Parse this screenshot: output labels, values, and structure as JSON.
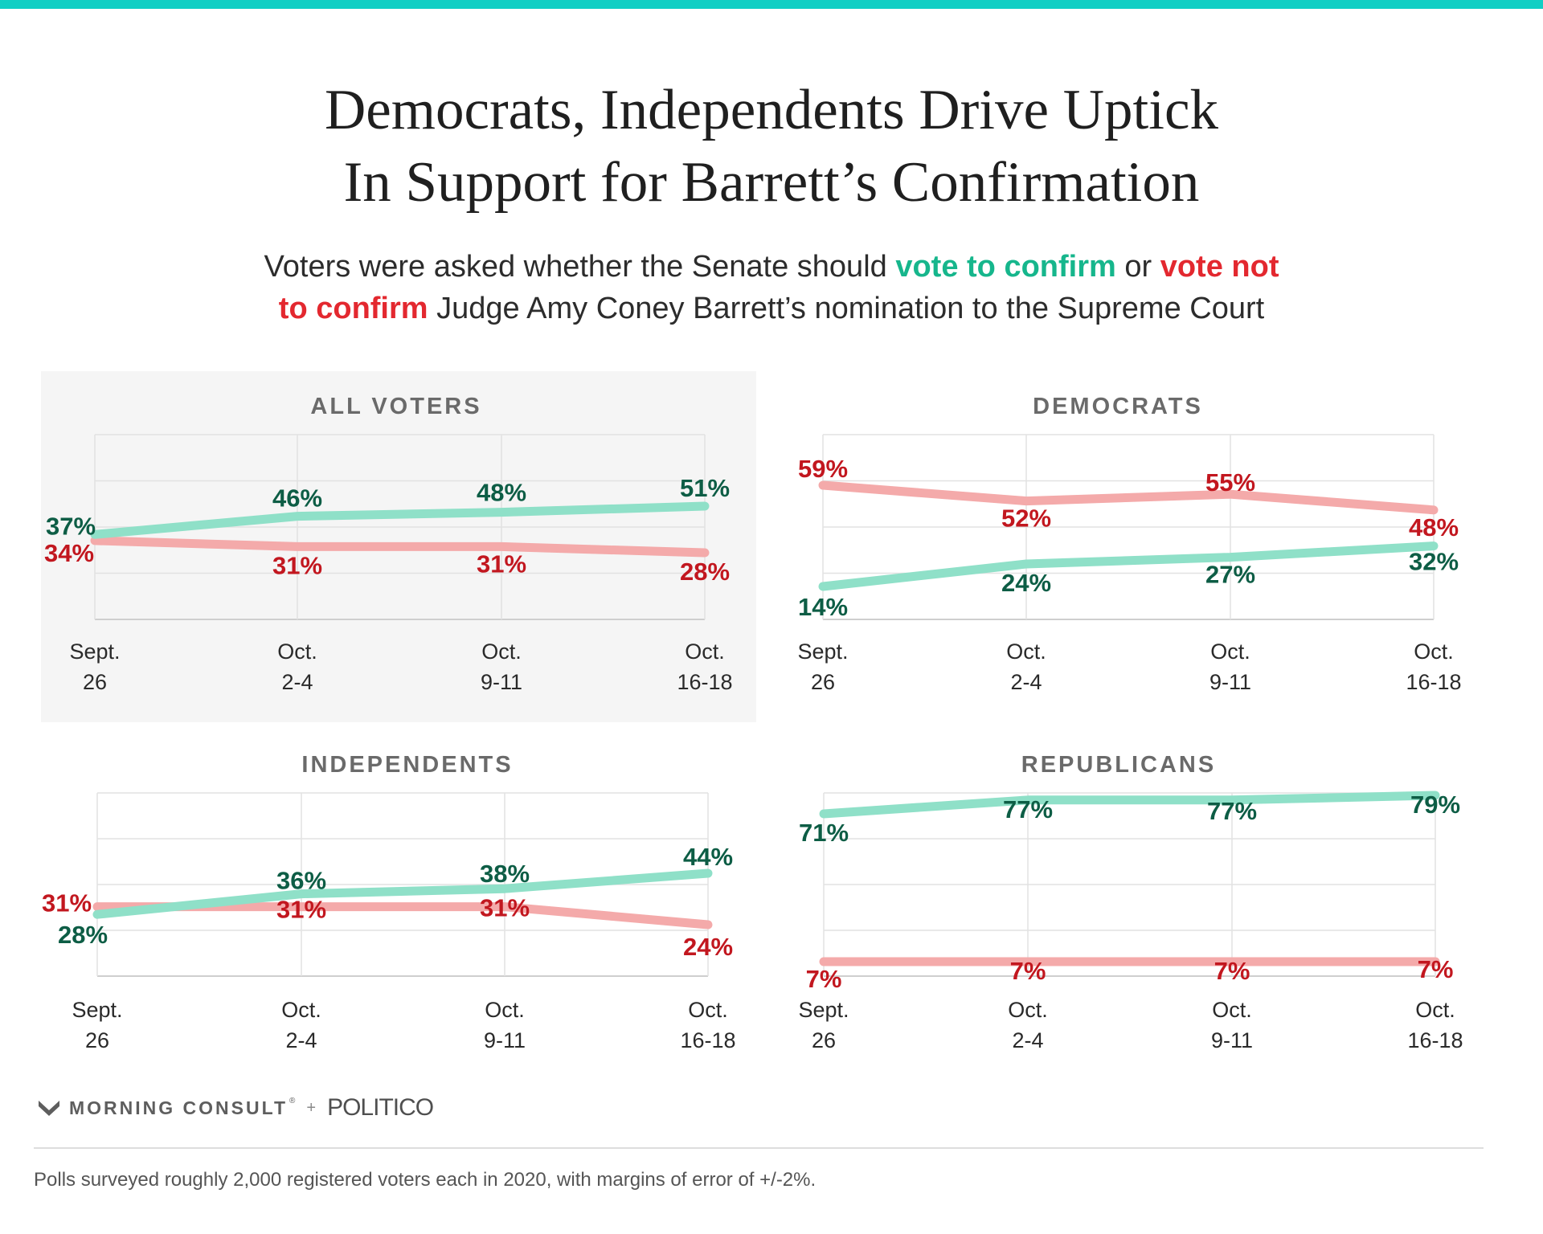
{
  "title_lines": [
    "Democrats, Independents Drive Uptick",
    "In Support for Barrett’s Confirmation"
  ],
  "subtitle": {
    "part1": "Voters were asked whether the Senate should ",
    "green": "vote to confirm",
    "part2": " or ",
    "red_line1": "vote not",
    "red_line2": "to confirm",
    "part3": " Judge Amy Coney Barrett’s nomination to the Supreme Court"
  },
  "colors": {
    "confirm_line": "#8fe0c8",
    "confirm_label": "#0d5d45",
    "not_confirm_line": "#f4aaaa",
    "not_confirm_label": "#c2171f",
    "panel_highlight": "#f5f5f5",
    "grid": "#e2e2e2"
  },
  "chart_data": [
    {
      "type": "line",
      "title": "ALL VOTERS",
      "highlighted": true,
      "x": [
        "Sept.\n26",
        "Oct.\n2-4",
        "Oct.\n9-11",
        "Oct.\n16-18"
      ],
      "series": [
        {
          "key": "confirm",
          "values": [
            37,
            46,
            48,
            51
          ]
        },
        {
          "key": "not_confirm",
          "values": [
            34,
            31,
            31,
            28
          ]
        }
      ],
      "grid": true
    },
    {
      "type": "line",
      "title": "DEMOCRATS",
      "highlighted": false,
      "x": [
        "Sept.\n26",
        "Oct.\n2-4",
        "Oct.\n9-11",
        "Oct.\n16-18"
      ],
      "series": [
        {
          "key": "confirm",
          "values": [
            14,
            24,
            27,
            32
          ]
        },
        {
          "key": "not_confirm",
          "values": [
            59,
            52,
            55,
            48
          ]
        }
      ],
      "grid": true
    },
    {
      "type": "line",
      "title": "INDEPENDENTS",
      "highlighted": false,
      "x": [
        "Sept.\n26",
        "Oct.\n2-4",
        "Oct.\n9-11",
        "Oct.\n16-18"
      ],
      "series": [
        {
          "key": "confirm",
          "values": [
            28,
            36,
            38,
            44
          ]
        },
        {
          "key": "not_confirm",
          "values": [
            31,
            31,
            31,
            24
          ]
        }
      ],
      "grid": true
    },
    {
      "type": "line",
      "title": "REPUBLICANS",
      "highlighted": false,
      "x": [
        "Sept.\n26",
        "Oct.\n2-4",
        "Oct.\n9-11",
        "Oct.\n16-18"
      ],
      "series": [
        {
          "key": "confirm",
          "values": [
            71,
            77,
            77,
            79
          ]
        },
        {
          "key": "not_confirm",
          "values": [
            7,
            7,
            7,
            7
          ]
        }
      ],
      "grid": true
    }
  ],
  "brand": {
    "mc": "MORNING CONSULT",
    "reg": "®",
    "plus": "+",
    "politico": "POLITICO",
    "icon": "morning-consult-logo-icon"
  },
  "footnote": "Polls surveyed roughly 2,000 registered voters each in 2020, with margins of error of +/-2%."
}
